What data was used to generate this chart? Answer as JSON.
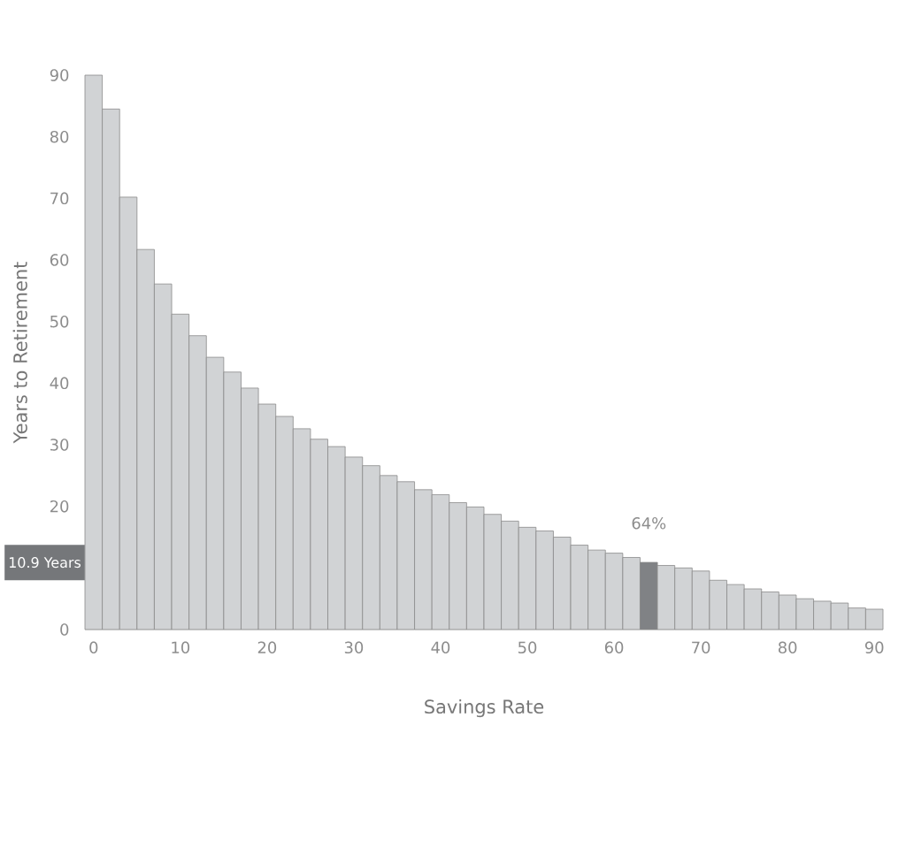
{
  "chart_data": {
    "type": "bar",
    "xlabel": "Savings Rate",
    "ylabel": "Years to Retirement",
    "x": [
      0,
      2,
      4,
      6,
      8,
      10,
      12,
      14,
      16,
      18,
      20,
      22,
      24,
      26,
      28,
      30,
      32,
      34,
      36,
      38,
      40,
      42,
      44,
      46,
      48,
      50,
      52,
      54,
      56,
      58,
      60,
      62,
      64,
      66,
      68,
      70,
      72,
      74,
      76,
      78,
      80,
      82,
      84,
      86,
      88,
      90
    ],
    "values": [
      90,
      84.5,
      70.2,
      61.7,
      56.1,
      51.2,
      47.7,
      44.2,
      41.8,
      39.2,
      36.6,
      34.6,
      32.6,
      30.9,
      29.7,
      28.0,
      26.6,
      25.0,
      24.0,
      22.7,
      21.9,
      20.6,
      19.9,
      18.7,
      17.6,
      16.6,
      16.0,
      15.0,
      13.7,
      12.9,
      12.4,
      11.7,
      10.9,
      10.4,
      10.0,
      9.5,
      8.0,
      7.3,
      6.6,
      6.1,
      5.6,
      5.0,
      4.6,
      4.3,
      3.5,
      3.3
    ],
    "colors": [
      "#d1d3d5",
      "#d1d3d5",
      "#d1d3d5",
      "#d1d3d5",
      "#d1d3d5",
      "#d1d3d5",
      "#d1d3d5",
      "#d1d3d5",
      "#d1d3d5",
      "#d1d3d5",
      "#d1d3d5",
      "#d1d3d5",
      "#d1d3d5",
      "#d1d3d5",
      "#d1d3d5",
      "#d1d3d5",
      "#d1d3d5",
      "#d1d3d5",
      "#d1d3d5",
      "#d1d3d5",
      "#d1d3d5",
      "#d1d3d5",
      "#d1d3d5",
      "#d1d3d5",
      "#d1d3d5",
      "#d1d3d5",
      "#d1d3d5",
      "#d1d3d5",
      "#d1d3d5",
      "#d1d3d5",
      "#d1d3d5",
      "#d1d3d5",
      "#808285",
      "#d1d3d5",
      "#d1d3d5",
      "#d1d3d5",
      "#d1d3d5",
      "#d1d3d5",
      "#d1d3d5",
      "#d1d3d5",
      "#d1d3d5",
      "#d1d3d5",
      "#d1d3d5",
      "#d1d3d5",
      "#d1d3d5",
      "#d1d3d5"
    ],
    "xlim": [
      -1,
      91
    ],
    "ylim": [
      0,
      90
    ],
    "xticks": [
      0,
      10,
      20,
      30,
      40,
      50,
      60,
      70,
      80,
      90
    ],
    "yticks": [
      0,
      20,
      30,
      40,
      50,
      60,
      70,
      80,
      90
    ],
    "annotations": [
      {
        "text": "64%",
        "x": 64,
        "y": 10.9
      },
      "10.9 Years"
    ]
  }
}
